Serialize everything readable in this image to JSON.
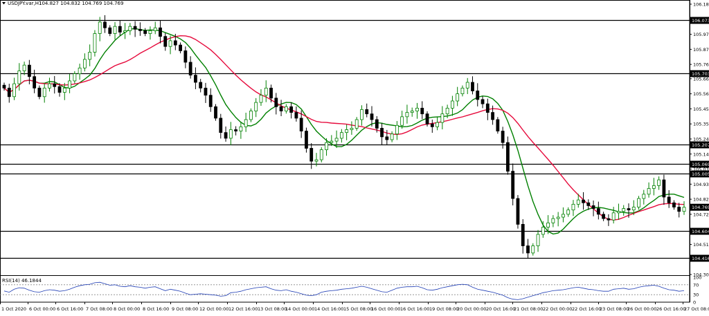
{
  "chart_data": [
    {
      "type": "candlestick",
      "title": "USDJPY.var,H1",
      "ohlc_header": "104.827 104.832 104.769 104.769",
      "y_ticks": [
        "106.185",
        "106.073",
        "105.975",
        "105.870",
        "105.765",
        "105.703",
        "105.665",
        "105.560",
        "105.455",
        "105.350",
        "105.245",
        "105.207",
        "105.140",
        "105.069",
        "105.035",
        "105.005",
        "104.930",
        "104.825",
        "104.769",
        "104.720",
        "104.604",
        "104.510",
        "104.416",
        "104.300"
      ],
      "x_ticks": [
        "1 Oct 2020",
        "6 Oct 00:00",
        "6 Oct 16:00",
        "7 Oct 08:00",
        "8 Oct 00:00",
        "8 Oct 16:00",
        "9 Oct 08:00",
        "12 Oct 00:00",
        "12 Oct 16:00",
        "13 Oct 08:00",
        "14 Oct 00:00",
        "14 Oct 16:00",
        "15 Oct 08:00",
        "16 Oct 00:00",
        "16 Oct 16:00",
        "19 Oct 08:00",
        "20 Oct 00:00",
        "20 Oct 16:00",
        "21 Oct 08:00",
        "22 Oct 00:00",
        "22 Oct 16:00",
        "23 Oct 08:00",
        "26 Oct 00:00",
        "26 Oct 16:00",
        "27 Oct 08:00"
      ],
      "ylim": [
        104.3,
        106.185
      ],
      "horizontal_levels": [
        {
          "value": 106.073,
          "label": "106.073"
        },
        {
          "value": 105.703,
          "label": "105.703"
        },
        {
          "value": 105.207,
          "label": "105.207"
        },
        {
          "value": 105.069,
          "label": "105.069"
        },
        {
          "value": 105.005,
          "label": "105.005"
        },
        {
          "value": 104.604,
          "label": "104.604"
        },
        {
          "value": 104.416,
          "label": "104.416"
        }
      ],
      "current_price": {
        "value": 104.769,
        "label": "104.769"
      },
      "closes": [
        105.6,
        105.54,
        105.63,
        105.72,
        105.76,
        105.68,
        105.6,
        105.54,
        105.6,
        105.63,
        105.61,
        105.57,
        105.6,
        105.65,
        105.7,
        105.74,
        105.8,
        105.85,
        105.98,
        106.06,
        106.02,
        105.98,
        106.03,
        105.99,
        106.0,
        106.03,
        106.01,
        106.0,
        105.98,
        106.0,
        106.02,
        105.96,
        105.89,
        105.93,
        105.9,
        105.86,
        105.78,
        105.69,
        105.64,
        105.6,
        105.55,
        105.47,
        105.39,
        105.29,
        105.25,
        105.31,
        105.3,
        105.33,
        105.38,
        105.44,
        105.5,
        105.55,
        105.6,
        105.53,
        105.47,
        105.44,
        105.47,
        105.43,
        105.39,
        105.3,
        105.18,
        105.09,
        105.1,
        105.17,
        105.22,
        105.23,
        105.25,
        105.29,
        105.31,
        105.32,
        105.38,
        105.45,
        105.42,
        105.38,
        105.32,
        105.26,
        105.24,
        105.28,
        105.34,
        105.4,
        105.43,
        105.44,
        105.46,
        105.42,
        105.35,
        105.33,
        105.36,
        105.42,
        105.46,
        105.51,
        105.56,
        105.6,
        105.64,
        105.58,
        105.52,
        105.49,
        105.43,
        105.38,
        105.3,
        105.22,
        105.02,
        104.83,
        104.65,
        104.5,
        104.45,
        104.5,
        104.58,
        104.63,
        104.66,
        104.69,
        104.7,
        104.72,
        104.75,
        104.79,
        104.82,
        104.8,
        104.78,
        104.76,
        104.72,
        104.69,
        104.68,
        104.73,
        104.74,
        104.76,
        104.75,
        104.77,
        104.83,
        104.86,
        104.9,
        104.92,
        104.96,
        104.84,
        104.8,
        104.77,
        104.74,
        104.769
      ],
      "indicators": [
        {
          "name": "MA-green",
          "color": "#008000"
        },
        {
          "name": "MA-red",
          "color": "#e60a3c"
        }
      ],
      "candle_colors": {
        "up": "#008000",
        "down": "#000000"
      }
    },
    {
      "type": "line",
      "title": "RSI(14) 46.1844",
      "y_ticks": [
        "100",
        "70",
        "30",
        "0"
      ],
      "levels": [
        70,
        30
      ],
      "ylim": [
        0,
        100
      ],
      "values": [
        45,
        40,
        52,
        58,
        56,
        48,
        42,
        40,
        46,
        50,
        48,
        44,
        46,
        52,
        60,
        66,
        70,
        72,
        78,
        80,
        74,
        68,
        70,
        64,
        62,
        66,
        62,
        60,
        56,
        60,
        62,
        54,
        46,
        52,
        48,
        44,
        36,
        30,
        32,
        34,
        32,
        30,
        28,
        24,
        26,
        38,
        40,
        44,
        50,
        54,
        58,
        60,
        62,
        54,
        48,
        46,
        50,
        44,
        40,
        34,
        28,
        26,
        30,
        40,
        44,
        46,
        48,
        52,
        54,
        56,
        60,
        64,
        60,
        54,
        48,
        42,
        40,
        48,
        56,
        60,
        62,
        62,
        64,
        58,
        50,
        48,
        52,
        58,
        62,
        66,
        70,
        72,
        70,
        60,
        52,
        48,
        44,
        40,
        34,
        28,
        18,
        12,
        10,
        14,
        20,
        26,
        32,
        38,
        42,
        46,
        48,
        50,
        54,
        58,
        60,
        56,
        52,
        50,
        46,
        44,
        44,
        52,
        54,
        56,
        52,
        54,
        60,
        64,
        66,
        68,
        64,
        56,
        50,
        48,
        44,
        46
      ]
    }
  ]
}
